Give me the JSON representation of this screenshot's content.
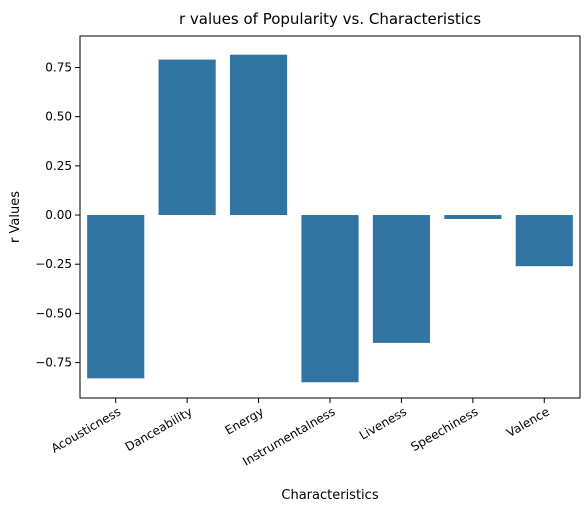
{
  "chart_data": {
    "type": "bar",
    "title": "r values of Popularity vs. Characteristics",
    "xlabel": "Characteristics",
    "ylabel": "r Values",
    "categories": [
      "Acousticness",
      "Danceability",
      "Energy",
      "Instrumentalness",
      "Liveness",
      "Speechiness",
      "Valence"
    ],
    "values": [
      -0.83,
      0.79,
      0.815,
      -0.85,
      -0.65,
      -0.02,
      -0.26
    ],
    "ylim": [
      -0.93,
      0.91
    ],
    "yticks": [
      -0.75,
      -0.5,
      -0.25,
      0.0,
      0.25,
      0.5,
      0.75
    ],
    "ytick_labels": [
      "−0.75",
      "−0.50",
      "−0.25",
      "0.00",
      "0.25",
      "0.50",
      "0.75"
    ],
    "bar_color": "#3274a1",
    "grid": false,
    "legend": "none"
  }
}
